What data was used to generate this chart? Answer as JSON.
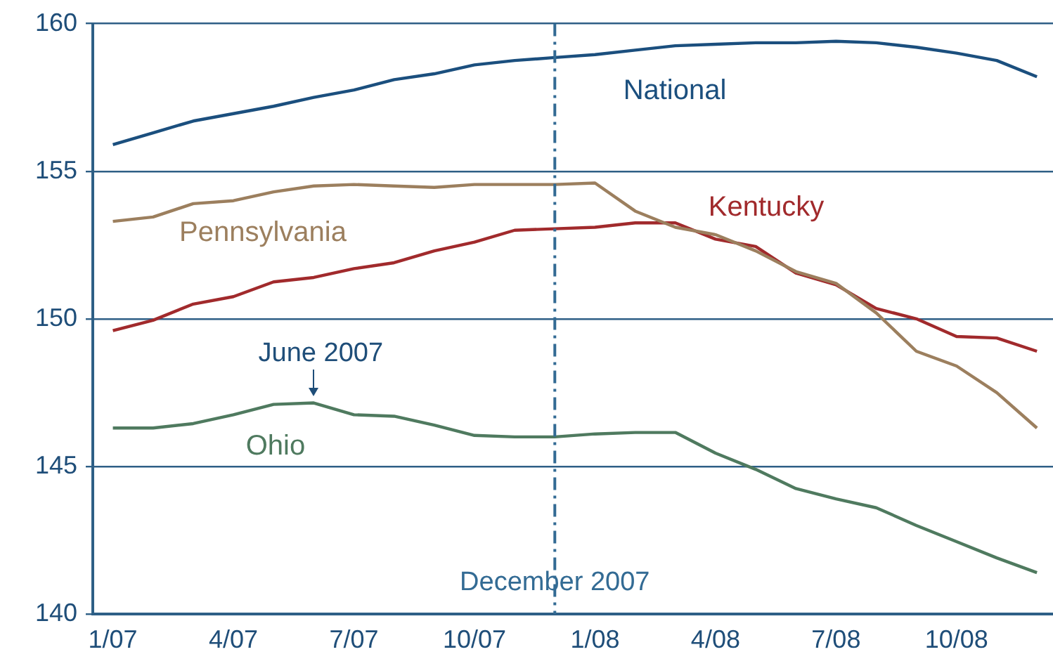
{
  "chart_data": {
    "type": "line",
    "x": [
      "2007-01",
      "2007-02",
      "2007-03",
      "2007-04",
      "2007-05",
      "2007-06",
      "2007-07",
      "2007-08",
      "2007-09",
      "2007-10",
      "2007-11",
      "2007-12",
      "2008-01",
      "2008-02",
      "2008-03",
      "2008-04",
      "2008-05",
      "2008-06",
      "2008-07",
      "2008-08",
      "2008-09",
      "2008-10",
      "2008-11",
      "2008-12"
    ],
    "series": [
      {
        "name": "National",
        "color": "#1b4f7e",
        "values": [
          155.9,
          156.3,
          156.7,
          156.95,
          157.2,
          157.5,
          157.75,
          158.1,
          158.3,
          158.6,
          158.75,
          158.85,
          158.95,
          159.1,
          159.25,
          159.3,
          159.35,
          159.35,
          159.4,
          159.35,
          159.2,
          159.0,
          158.75,
          158.2
        ]
      },
      {
        "name": "Pennsylvania",
        "color": "#9c7f5e",
        "values": [
          153.3,
          153.45,
          153.9,
          154.0,
          154.3,
          154.5,
          154.55,
          154.5,
          154.45,
          154.55,
          154.55,
          154.55,
          154.6,
          153.65,
          153.1,
          152.85,
          152.3,
          151.6,
          151.2,
          150.2,
          148.9,
          148.4,
          147.5,
          146.3
        ]
      },
      {
        "name": "Kentucky",
        "color": "#a12a2c",
        "values": [
          149.6,
          149.95,
          150.5,
          150.75,
          151.25,
          151.4,
          151.7,
          151.9,
          152.3,
          152.6,
          153.0,
          153.05,
          153.1,
          153.25,
          153.25,
          152.7,
          152.45,
          151.55,
          151.15,
          150.35,
          150.0,
          149.4,
          149.35,
          148.9
        ]
      },
      {
        "name": "Ohio",
        "color": "#4f7a5f",
        "values": [
          146.3,
          146.3,
          146.45,
          146.75,
          147.1,
          147.15,
          146.75,
          146.7,
          146.4,
          146.05,
          146.0,
          146.0,
          146.1,
          146.15,
          146.15,
          145.45,
          144.9,
          144.25,
          143.9,
          143.6,
          143.0,
          142.45,
          141.9,
          141.4
        ]
      }
    ],
    "xlim": [
      "2006-12-16",
      "2008-12-13"
    ],
    "xticks": [
      {
        "value": "2007-01",
        "label": "1/07"
      },
      {
        "value": "2007-04",
        "label": "4/07"
      },
      {
        "value": "2007-07",
        "label": "7/07"
      },
      {
        "value": "2007-10",
        "label": "10/07"
      },
      {
        "value": "2008-01",
        "label": "1/08"
      },
      {
        "value": "2008-04",
        "label": "4/08"
      },
      {
        "value": "2008-07",
        "label": "7/08"
      },
      {
        "value": "2008-10",
        "label": "10/08"
      }
    ],
    "ylim": [
      140,
      160
    ],
    "yticks": [
      140,
      145,
      150,
      155,
      160
    ],
    "grid": "y",
    "legend": false,
    "marker": "none",
    "line_style": "solid",
    "ref_lines": [
      {
        "axis": "x",
        "value": "2007-12",
        "label": "December 2007",
        "color": "#336b94",
        "line_style": "dashdot"
      }
    ],
    "annotations": [
      {
        "text": "June 2007",
        "x": "2007-06",
        "y": 147.15
      }
    ]
  }
}
